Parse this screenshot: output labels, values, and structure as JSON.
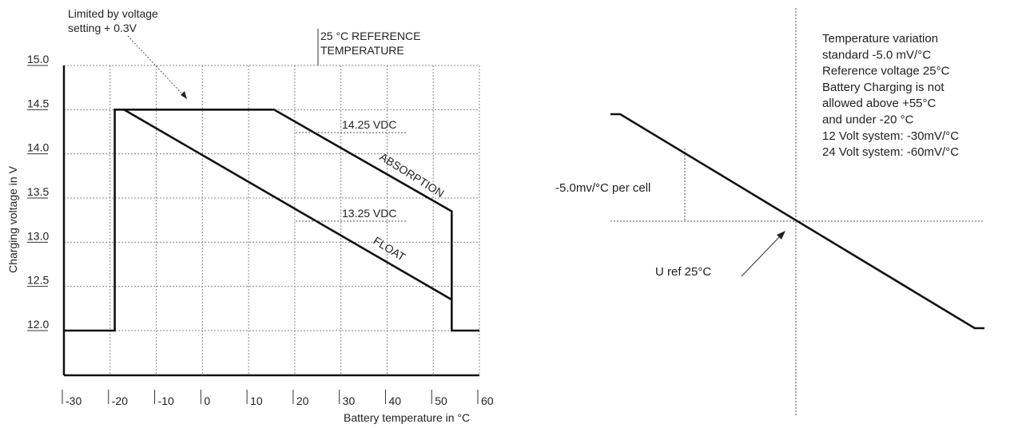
{
  "chart_data": [
    {
      "type": "line",
      "xlabel": "Battery temperature in °C",
      "ylabel": "Charging voltage in V",
      "xlim": [
        -30,
        60
      ],
      "ylim": [
        11.5,
        15.0
      ],
      "x_ticks": [
        "-30",
        "-20",
        "-10",
        "0",
        "10",
        "20",
        "30",
        "40",
        "50",
        "60"
      ],
      "y_ticks": [
        "12.0",
        "12.5",
        "13.0",
        "13.5",
        "14.0",
        "14.5",
        "15.0"
      ],
      "grid": true,
      "series": [
        {
          "name": "ABSORPTION",
          "x": [
            -30,
            -19,
            -19,
            15.5,
            54,
            54,
            60
          ],
          "y": [
            12.0,
            12.0,
            14.5,
            14.5,
            13.35,
            12.0,
            12.0
          ]
        },
        {
          "name": "FLOAT",
          "x": [
            -17,
            54
          ],
          "y": [
            14.5,
            12.35
          ]
        }
      ],
      "annotations": {
        "limited": [
          "Limited by voltage",
          "setting + 0.3V"
        ],
        "reference": [
          "25 °C REFERENCE",
          "TEMPERATURE"
        ],
        "abs_level": "14.25 VDC",
        "float_level": "13.25 VDC"
      }
    },
    {
      "type": "line",
      "series": [
        {
          "x": [
            -20,
            -18,
            55,
            57
          ],
          "y": [
            1.0,
            1.0,
            -1.0,
            -1.0
          ]
        }
      ],
      "annotations": {
        "slope_label": "-5.0mv/°C per cell",
        "uref_label": "U ref 25°C",
        "info_lines": [
          "Temperature variation",
          "standard -5.0 mV/°C",
          "Reference voltage 25°C",
          "Battery Charging is not",
          "allowed above +55°C",
          "and under -20 °C",
          "12 Volt system: -30mV/°C",
          "24 Volt system: -60mV/°C"
        ]
      }
    }
  ]
}
